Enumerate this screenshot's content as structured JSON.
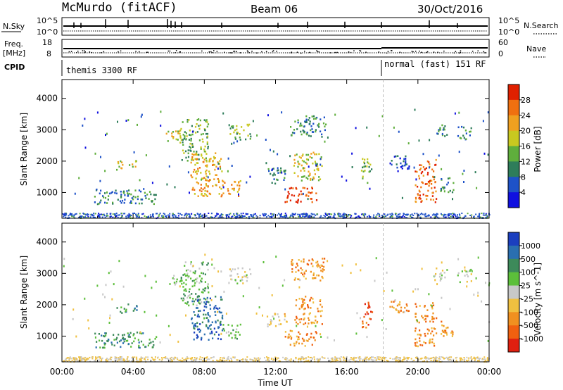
{
  "header": {
    "station": "McMurdo (fitACF)",
    "beam": "Beam 06",
    "date": "30/Oct/2016"
  },
  "top_panels": {
    "nsky": {
      "label": "N.Sky",
      "top_tick": "10^5",
      "bottom_tick": "10^0"
    },
    "nsearch": {
      "label": "N.Search",
      "top_tick": "10^5",
      "bottom_tick": "10^0"
    },
    "freq": {
      "label_line1": "Freq.",
      "label_line2": "[MHz]",
      "top_tick": "18",
      "bottom_tick": "8"
    },
    "nave": {
      "label": "Nave",
      "top_tick": "60",
      "bottom_tick": "0"
    },
    "cpid": {
      "label": "CPID",
      "mode_left": "themis 3300 RF",
      "mode_right": "normal (fast) 151 RF"
    }
  },
  "chart_data": [
    {
      "type": "heatmap",
      "name": "power-panel",
      "ylabel": "Slant Range [km]",
      "xlabel": "",
      "x_ticks": [
        "00:00",
        "04:00",
        "08:00",
        "12:00",
        "16:00",
        "20:00",
        "00:00"
      ],
      "x_range_hours": [
        0,
        24
      ],
      "y_ticks": [
        1000,
        2000,
        3000,
        4000
      ],
      "ylim": [
        180,
        4600
      ],
      "colorbar": {
        "label": "Power [dB]",
        "ticks": [
          "4",
          "8",
          "12",
          "16",
          "20",
          "24",
          "28"
        ],
        "range": [
          0,
          32
        ],
        "colors": [
          "#1010e0",
          "#1e52c8",
          "#2e7d5a",
          "#5fae3c",
          "#c8c820",
          "#f0a020",
          "#f07010",
          "#e02000"
        ]
      },
      "mode_change_hour": 18.05
    },
    {
      "type": "heatmap",
      "name": "velocity-panel",
      "ylabel": "Slant Range [km]",
      "xlabel": "Time UT",
      "x_ticks": [
        "00:00",
        "04:00",
        "08:00",
        "12:00",
        "16:00",
        "20:00",
        "00:00"
      ],
      "x_range_hours": [
        0,
        24
      ],
      "y_ticks": [
        1000,
        2000,
        3000,
        4000
      ],
      "ylim": [
        180,
        4600
      ],
      "colorbar": {
        "label": "Velocity [m s^-1]",
        "ticks": [
          "1000",
          "500",
          "100",
          "25",
          "-25",
          "-100",
          "-500",
          "-1000"
        ],
        "colors": [
          "#1b3fbf",
          "#2a6fb0",
          "#3d8a5a",
          "#5cbf3a",
          "#c8c8c8",
          "#f0c040",
          "#f09020",
          "#f06010",
          "#e02010"
        ]
      },
      "mode_change_hour": 18.05
    }
  ],
  "echo_regions": [
    {
      "t0": 3.0,
      "t1": 4.2,
      "r0": 1750,
      "r1": 2050,
      "dominant": 4,
      "vel": 2
    },
    {
      "t0": 1.8,
      "t1": 5.4,
      "r0": 650,
      "r1": 1150,
      "dominant": 2,
      "vel": 2
    },
    {
      "t0": 5.8,
      "t1": 6.8,
      "r0": 2650,
      "r1": 3000,
      "dominant": 4,
      "vel": 3
    },
    {
      "t0": 6.6,
      "t1": 8.2,
      "r0": 2000,
      "r1": 3400,
      "dominant": 3,
      "vel": 3
    },
    {
      "t0": 7.2,
      "t1": 9.0,
      "r0": 900,
      "r1": 2300,
      "dominant": 5,
      "vel": 1
    },
    {
      "t0": 9.0,
      "t1": 10.0,
      "r0": 900,
      "r1": 1400,
      "dominant": 5,
      "vel": 3
    },
    {
      "t0": 9.4,
      "t1": 10.6,
      "r0": 2700,
      "r1": 3200,
      "dominant": 3,
      "vel": 4
    },
    {
      "t0": 11.5,
      "t1": 12.6,
      "r0": 1300,
      "r1": 1800,
      "dominant": 2,
      "vel": 5
    },
    {
      "t0": 12.5,
      "t1": 14.3,
      "r0": 700,
      "r1": 1200,
      "dominant": 7,
      "vel": 6
    },
    {
      "t0": 13.0,
      "t1": 14.6,
      "r0": 1400,
      "r1": 2300,
      "dominant": 4,
      "vel": 6
    },
    {
      "t0": 12.8,
      "t1": 14.8,
      "r0": 2800,
      "r1": 3500,
      "dominant": 2,
      "vel": 6
    },
    {
      "t0": 16.8,
      "t1": 17.4,
      "r0": 1300,
      "r1": 2100,
      "dominant": 3,
      "vel": 7
    },
    {
      "t0": 18.4,
      "t1": 19.5,
      "r0": 1700,
      "r1": 2200,
      "dominant": 1,
      "vel": 6
    },
    {
      "t0": 19.8,
      "t1": 21.0,
      "r0": 700,
      "r1": 2100,
      "dominant": 6,
      "vel": 6
    },
    {
      "t0": 21.2,
      "t1": 22.0,
      "r0": 1000,
      "r1": 1500,
      "dominant": 2,
      "vel": 6
    },
    {
      "t0": 20.8,
      "t1": 21.6,
      "r0": 2800,
      "r1": 3200,
      "dominant": 2,
      "vel": 4
    },
    {
      "t0": 22.2,
      "t1": 23.0,
      "r0": 2700,
      "r1": 3150,
      "dominant": 2,
      "vel": 4
    }
  ]
}
